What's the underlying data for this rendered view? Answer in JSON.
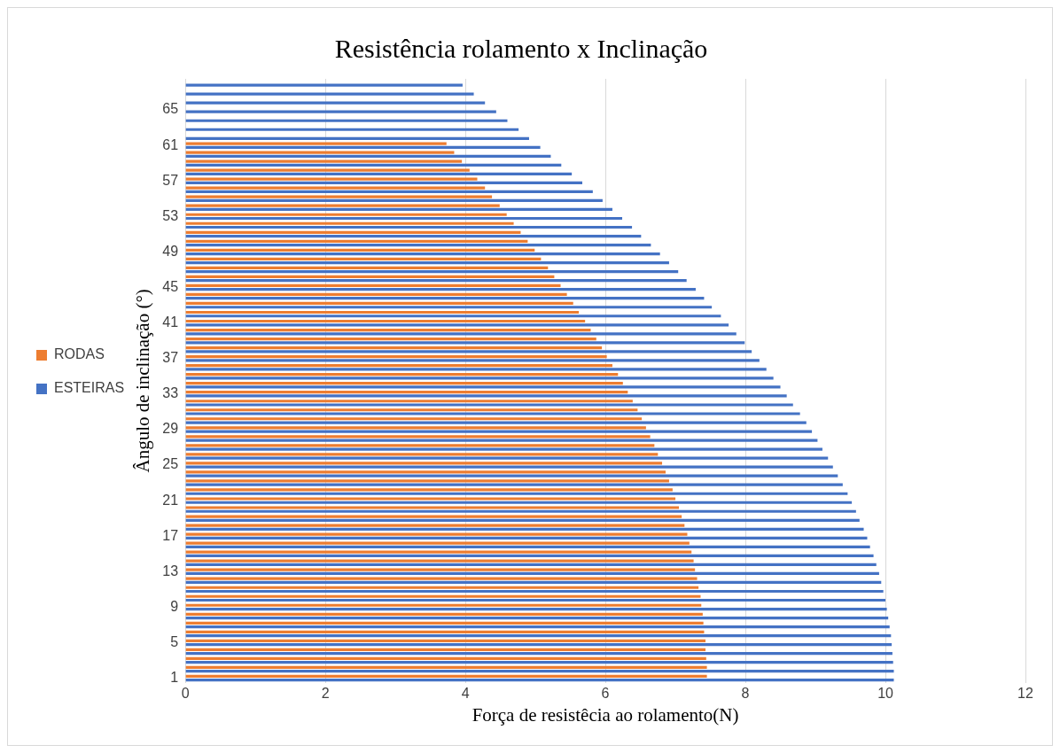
{
  "chart_data": {
    "type": "bar",
    "orientation": "horizontal",
    "title": "Resistência rolamento x Inclinação",
    "xlabel": "Força de resistêcia ao rolamento(N)",
    "ylabel": "Ângulo de inclinação (°)",
    "categories": [
      null,
      null,
      null,
      "65",
      null,
      null,
      null,
      "61",
      null,
      null,
      null,
      "57",
      null,
      null,
      null,
      "53",
      null,
      null,
      null,
      "49",
      null,
      null,
      null,
      "45",
      null,
      null,
      null,
      "41",
      null,
      null,
      null,
      "37",
      null,
      null,
      null,
      "33",
      null,
      null,
      null,
      "29",
      null,
      null,
      null,
      "25",
      null,
      null,
      null,
      "21",
      null,
      null,
      null,
      "17",
      null,
      null,
      null,
      "13",
      null,
      null,
      null,
      "9",
      null,
      null,
      null,
      "5",
      null,
      null,
      null,
      "1"
    ],
    "series": [
      {
        "name": "RODAS",
        "color": "#ed7d31",
        "values": [
          null,
          null,
          null,
          null,
          null,
          null,
          null,
          3.73,
          3.84,
          3.95,
          4.06,
          4.17,
          4.28,
          4.38,
          4.49,
          4.59,
          4.69,
          4.79,
          4.89,
          4.99,
          5.08,
          5.18,
          5.27,
          5.36,
          5.45,
          5.54,
          5.62,
          5.71,
          5.79,
          5.87,
          5.95,
          6.02,
          6.1,
          6.18,
          6.25,
          6.32,
          6.39,
          6.46,
          6.52,
          6.58,
          6.64,
          6.7,
          6.75,
          6.81,
          6.86,
          6.91,
          6.96,
          7.0,
          7.05,
          7.09,
          7.13,
          7.17,
          7.2,
          7.23,
          7.26,
          7.28,
          7.31,
          7.33,
          7.36,
          7.37,
          7.39,
          7.4,
          7.41,
          7.43,
          7.43,
          7.44,
          7.45,
          7.45
        ]
      },
      {
        "name": "ESTEIRAS",
        "color": "#4472c4",
        "values": [
          3.96,
          4.12,
          4.28,
          4.44,
          4.6,
          4.76,
          4.91,
          5.07,
          5.22,
          5.37,
          5.52,
          5.67,
          5.82,
          5.96,
          6.1,
          6.24,
          6.38,
          6.51,
          6.65,
          6.78,
          6.91,
          7.04,
          7.16,
          7.29,
          7.41,
          7.52,
          7.65,
          7.76,
          7.87,
          7.99,
          8.09,
          8.2,
          8.3,
          8.4,
          8.5,
          8.59,
          8.68,
          8.78,
          8.87,
          8.95,
          9.03,
          9.1,
          9.18,
          9.25,
          9.32,
          9.39,
          9.46,
          9.52,
          9.58,
          9.63,
          9.69,
          9.74,
          9.78,
          9.83,
          9.87,
          9.91,
          9.94,
          9.97,
          10.0,
          10.02,
          10.04,
          10.06,
          10.08,
          10.09,
          10.1,
          10.11,
          10.12,
          10.12
        ]
      }
    ],
    "xlim": [
      0,
      12
    ],
    "xticks": [
      0,
      2,
      4,
      6,
      8,
      10,
      12
    ],
    "grid": "x",
    "legend": "left"
  }
}
